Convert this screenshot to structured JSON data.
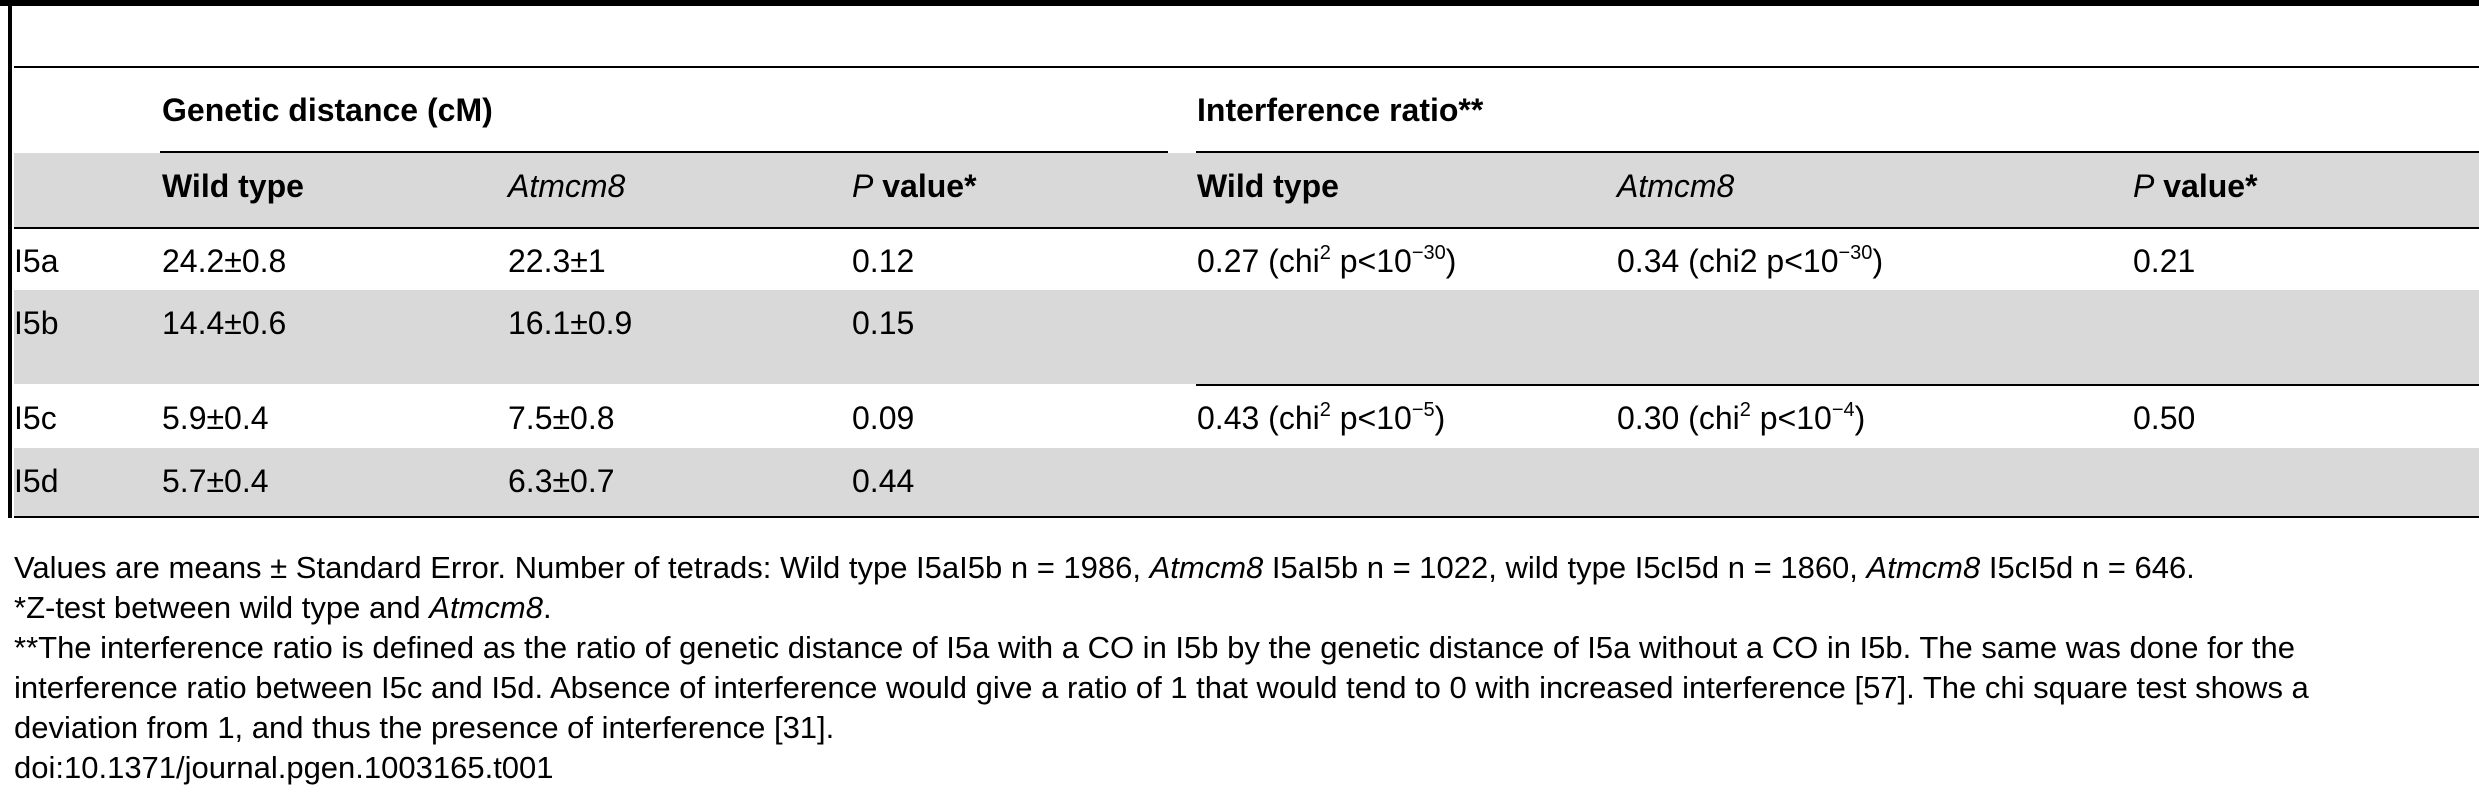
{
  "table": {
    "group_headers": {
      "genetic_distance": "Genetic distance (cM)",
      "interference_ratio": "Interference ratio**"
    },
    "columns": {
      "wild_type": "Wild type",
      "atmcm8": "Atmcm8",
      "p": "P",
      "p_suffix": " value*"
    },
    "rows": [
      {
        "label": "I5a",
        "gd_wt": "24.2±0.8",
        "gd_mut": "22.3±1",
        "gd_p": "0.12",
        "ir_wt_pre": "0.27 (chi",
        "ir_wt_sup": "2",
        "ir_wt_mid": " p<10",
        "ir_wt_exp": "−30",
        "ir_wt_post": ")",
        "ir_mut_pre": "0.34 (chi2 p<10",
        "ir_mut_exp": "−30",
        "ir_mut_post": ")",
        "ir_p": "0.21"
      },
      {
        "label": "I5b",
        "gd_wt": "14.4±0.6",
        "gd_mut": "16.1±0.9",
        "gd_p": "0.15"
      },
      {
        "label": "I5c",
        "gd_wt": "5.9±0.4",
        "gd_mut": "7.5±0.8",
        "gd_p": "0.09",
        "ir_wt_pre": "0.43 (chi",
        "ir_wt_sup": "2",
        "ir_wt_mid": " p<10",
        "ir_wt_exp": "−5",
        "ir_wt_post": ")",
        "ir_mut_pre": "0.30 (chi",
        "ir_mut_sup": "2",
        "ir_mut_mid": " p<10",
        "ir_mut_exp": "−4",
        "ir_mut_post": ")",
        "ir_p": "0.50"
      },
      {
        "label": "I5d",
        "gd_wt": "5.7±0.4",
        "gd_mut": "6.3±0.7",
        "gd_p": "0.44"
      }
    ]
  },
  "footnotes": {
    "line1_a": "Values are means ± Standard Error. Number of tetrads: Wild type I5aI5b n = 1986, ",
    "line1_b": "Atmcm8",
    "line1_c": " I5aI5b n = 1022, wild type I5cI5d n = 1860, ",
    "line1_d": "Atmcm8",
    "line1_e": " I5cI5d n = 646.",
    "line2_a": "*Z-test between wild type and ",
    "line2_b": "Atmcm8",
    "line2_c": ".",
    "line3": "**The interference ratio is defined as the ratio of genetic distance of I5a with a CO in I5b by the genetic distance of I5a without a CO in I5b. The same was done for the",
    "line4": "interference ratio between I5c and I5d. Absence of interference would give a ratio of 1 that would tend to 0 with increased interference [57]. The chi square test shows a",
    "line5": "deviation from 1, and thus the presence of interference [31].",
    "doi": "doi:10.1371/journal.pgen.1003165.t001"
  }
}
